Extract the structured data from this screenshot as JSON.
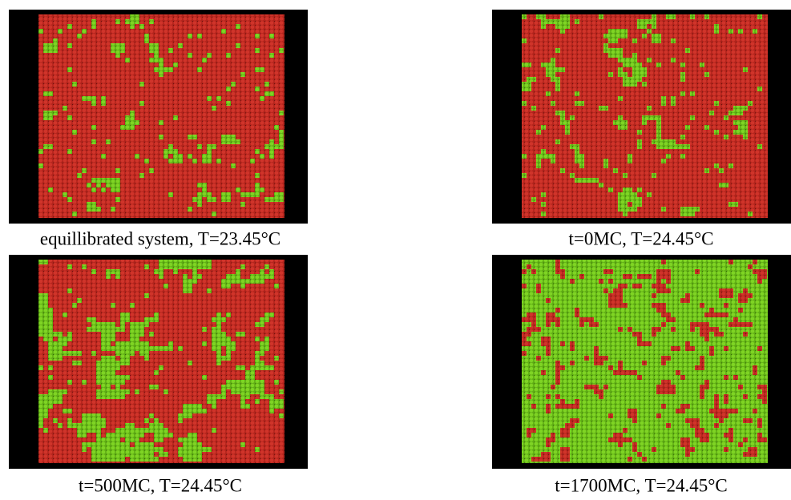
{
  "panels": [
    {
      "caption": "equillibrated system, T=23.45°C"
    },
    {
      "caption": "t=0MC, T=24.45°C"
    },
    {
      "caption": "t=500MC, T=24.45°C"
    },
    {
      "caption": "t=1700MC, T=24.45°C"
    }
  ]
}
